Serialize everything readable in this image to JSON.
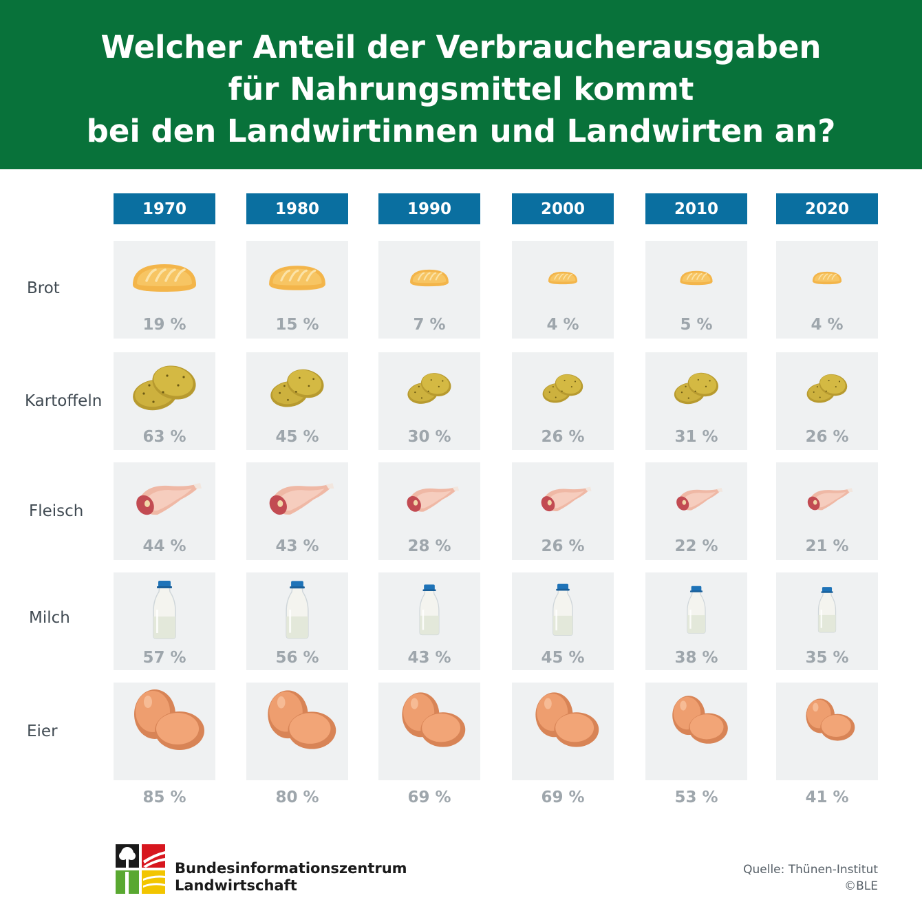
{
  "title_lines": [
    "Welcher Anteil der Verbraucherausgaben",
    "für Nahrungsmittel kommt",
    "bei den Landwirtinnen und Landwirten an?"
  ],
  "colors": {
    "banner": "#08723A",
    "year_header": "#0A6FA0",
    "cell_background": "#EFF1F2",
    "percent_text": "#9EA6AC"
  },
  "chart_data": {
    "type": "table",
    "title": "Welcher Anteil der Verbraucherausgaben für Nahrungsmittel kommt bei den Landwirtinnen und Landwirten an?",
    "columns": [
      "1970",
      "1980",
      "1990",
      "2000",
      "2010",
      "2020"
    ],
    "rows": [
      {
        "label": "Brot",
        "icon": "bread-icon",
        "values": [
          19,
          15,
          7,
          4,
          5,
          4
        ],
        "labels": [
          "19 %",
          "15 %",
          "7 %",
          "4 %",
          "5 %",
          "4 %"
        ]
      },
      {
        "label": "Kartoffeln",
        "icon": "potato-icon",
        "values": [
          63,
          45,
          30,
          26,
          31,
          26
        ],
        "labels": [
          "63 %",
          "45 %",
          "30 %",
          "26 %",
          "31 %",
          "26 %"
        ]
      },
      {
        "label": "Fleisch",
        "icon": "meat-icon",
        "values": [
          44,
          43,
          28,
          26,
          22,
          21
        ],
        "labels": [
          "44 %",
          "43 %",
          "28 %",
          "26 %",
          "22 %",
          "21 %"
        ]
      },
      {
        "label": "Milch",
        "icon": "milk-bottle-icon",
        "values": [
          57,
          56,
          43,
          45,
          38,
          35
        ],
        "labels": [
          "57 %",
          "56 %",
          "43 %",
          "45 %",
          "38 %",
          "35 %"
        ]
      },
      {
        "label": "Eier",
        "icon": "eggs-icon",
        "values": [
          85,
          80,
          69,
          69,
          53,
          41
        ],
        "labels": [
          "85 %",
          "80 %",
          "69 %",
          "69 %",
          "53 %",
          "41 %"
        ]
      }
    ]
  },
  "footer": {
    "logo_icon": "bzl-logo-icon",
    "org_lines": [
      "Bundesinformationszentrum",
      "Landwirtschaft"
    ],
    "source_lines": [
      "Quelle: Thünen-Institut",
      "©BLE"
    ]
  }
}
